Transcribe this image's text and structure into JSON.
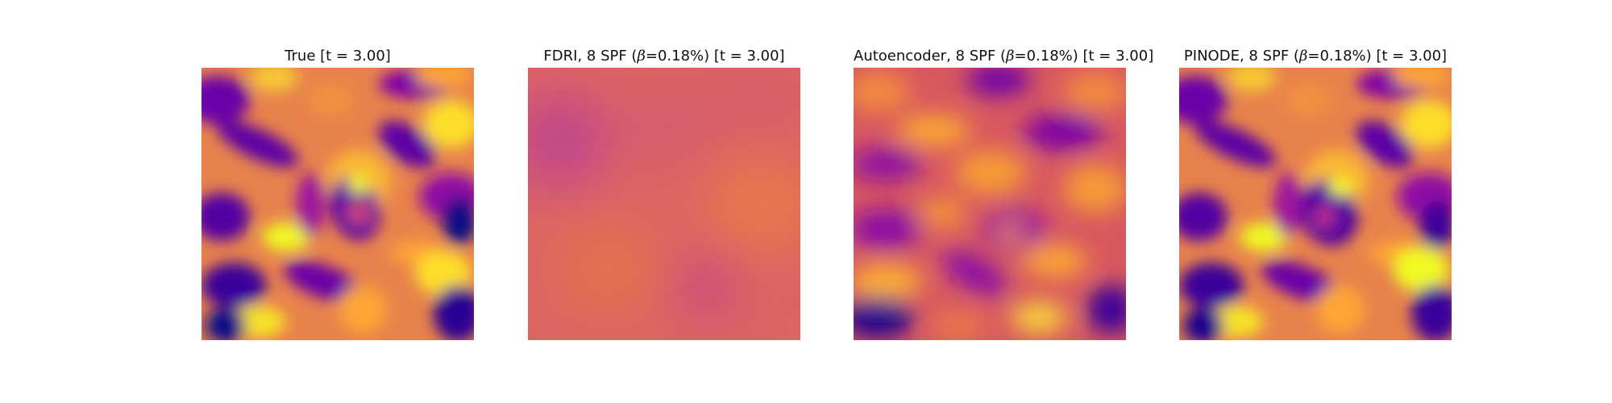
{
  "panels": [
    {
      "title": "True [t = 3.00]",
      "content": "sharp swirling plasma-colormap field with a central vortex"
    },
    {
      "title_pre": "FDRI, 8 SPF (",
      "beta_symbol": "β",
      "title_post": "=0.18%) [t = 3.00]",
      "content": "nearly uniform smooth magenta-orange field"
    },
    {
      "title_pre": "Autoencoder, 8 SPF (",
      "beta_symbol": "β",
      "title_post": "=0.18%) [t = 3.00]",
      "content": "blurred swirling field resembling the true field"
    },
    {
      "title_pre": "PINODE, 8 SPF (",
      "beta_symbol": "β",
      "title_post": "=0.18%) [t = 3.00]",
      "content": "close reconstruction of the true swirling field"
    }
  ],
  "colormap": [
    "#0d0887",
    "#6a00a8",
    "#b12a90",
    "#e16462",
    "#fca636",
    "#f0f921"
  ]
}
